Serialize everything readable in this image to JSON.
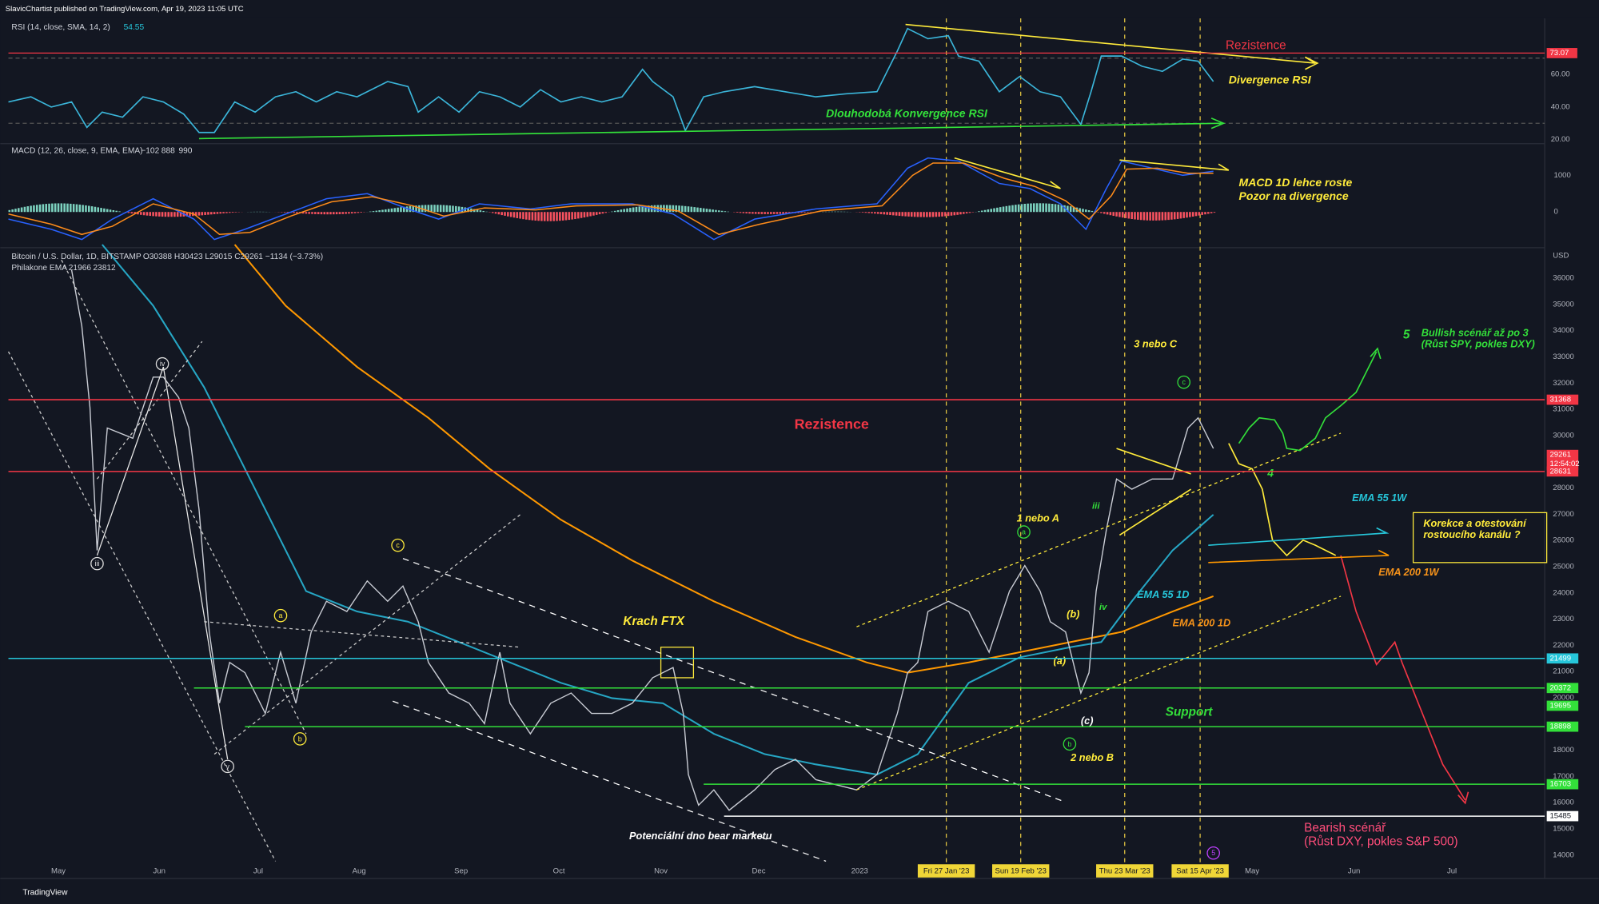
{
  "header": {
    "publisher": "SlavicChartist published on TradingView.com, Apr 19, 2023 11:05 UTC"
  },
  "rsi": {
    "legend": "RSI (14, close, SMA, 14, 2)",
    "value": "54.55",
    "ticks": [
      {
        "value": 60,
        "label": "60.00"
      },
      {
        "value": 40,
        "label": "40.00"
      },
      {
        "value": 20,
        "label": "20.00"
      }
    ],
    "level": {
      "value": 73.07,
      "label": "73.07"
    }
  },
  "macd": {
    "legend": "MACD (12, 26, close, 9, EMA, EMA)",
    "values": [
      "−102",
      "888",
      "990"
    ],
    "ticks": [
      1000,
      0
    ]
  },
  "price": {
    "legend": "Bitcoin / U.S. Dollar, 1D, BITSTAMP",
    "ohlc": "O30388 H30423 L29015 C29261 −1134 (−3.73%)",
    "ema_legend": "Philakone EMA",
    "ema_values": [
      "21966",
      "23812"
    ],
    "currency": "USD",
    "ticks": [
      36000,
      35000,
      34000,
      33000,
      32000,
      31000,
      30000,
      28000,
      27000,
      26000,
      25000,
      24000,
      23000,
      22000,
      21000,
      20000,
      18000,
      17000,
      16000,
      15000,
      14000
    ],
    "levels": [
      {
        "value": 31368,
        "label": "31368"
      },
      {
        "value": 29261,
        "label": "29261",
        "countdown": "12:54:02"
      },
      {
        "value": 28631,
        "label": "28631"
      },
      {
        "value": 21499,
        "label": "21499"
      },
      {
        "value": 20372,
        "label": "20372"
      },
      {
        "value": 19695,
        "label": "19695"
      },
      {
        "value": 18898,
        "label": "18898"
      },
      {
        "value": 16703,
        "label": "16703"
      },
      {
        "value": 15485,
        "label": "15485"
      }
    ]
  },
  "time_axis": {
    "months": [
      "May",
      "Jun",
      "Jul",
      "Aug",
      "Sep",
      "Oct",
      "Nov",
      "Dec",
      "2023",
      "May",
      "Jun",
      "Jul"
    ],
    "highlight_dates": [
      "Fri 27 Jan '23",
      "Sun 19 Feb '23",
      "Thu 23 Mar '23",
      "Sat 15 Apr '23"
    ]
  },
  "annotations": {
    "rsi_resistance": "Rezistence",
    "rsi_divergence": "Divergence RSI",
    "rsi_convergence": "Dlouhodobá Konvergence RSI",
    "macd_note_1": "MACD 1D lehce roste",
    "macd_note_2": "Pozor na divergence",
    "resistance": "Rezistence",
    "ftx": "Krach FTX",
    "bottom": "Potenciální dno bear marketu",
    "support": "Support",
    "ema55_1d": "EMA 55 1D",
    "ema200_1d": "EMA 200 1D",
    "ema55_1w": "EMA 55 1W",
    "ema200_1w": "EMA 200 1W",
    "correction_1": "Korekce a otestování",
    "correction_2": "rostoucího kanálu ?",
    "bullish_5": "5",
    "bullish_1": "Bullish scénář až po 3",
    "bullish_2": "(Růst SPY, pokles DXY)",
    "bearish_1": "Bearish scénář",
    "bearish_2": "(Růst DXY, pokles S&P 500)",
    "wave_3c": "3 nebo C",
    "wave_1a": "1 nebo A",
    "wave_2b": "2 nebo B",
    "wave_b": "(b)",
    "wave_a": "(a)",
    "wave_c": "(c)",
    "wave_iii": "iii",
    "wave_iv": "iv",
    "wave_4": "4"
  },
  "wave_circles": [
    "iii",
    "iv",
    "v",
    "a",
    "b",
    "c",
    "c",
    "a",
    "b",
    "5"
  ],
  "footer": "TradingView"
}
